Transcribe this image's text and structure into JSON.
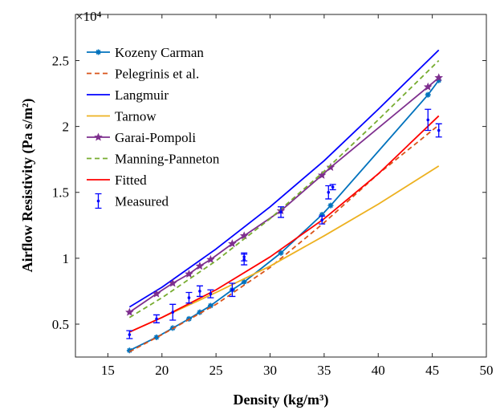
{
  "chart_data": {
    "type": "line",
    "xlabel": "Density (kg/m³)",
    "ylabel": "Airflow Resistivity (Pa s/m²)",
    "y_multiplier_label": "×10⁴",
    "xlim": [
      12,
      50
    ],
    "ylim": [
      0.25,
      2.85
    ],
    "x_ticks": [
      15,
      20,
      25,
      30,
      35,
      40,
      45,
      50
    ],
    "y_ticks": [
      0.5,
      1,
      1.5,
      2,
      2.5
    ],
    "x_tick_labels": [
      "15",
      "20",
      "25",
      "30",
      "35",
      "40",
      "45",
      "50"
    ],
    "y_tick_labels": [
      "0.5",
      "1",
      "1.5",
      "2",
      "2.5"
    ],
    "legend_position": "top-left",
    "grid": false,
    "series": [
      {
        "name": "Kozeny Carman",
        "color": "#0072BD",
        "style": "solid",
        "marker": "asterisk",
        "x": [
          17,
          19.5,
          21,
          22.5,
          23.5,
          24.5,
          26.5,
          27.6,
          31,
          34.8,
          35.6,
          44.6,
          45.6
        ],
        "y": [
          0.3,
          0.4,
          0.47,
          0.54,
          0.59,
          0.64,
          0.76,
          0.82,
          1.04,
          1.33,
          1.4,
          2.24,
          2.35
        ]
      },
      {
        "name": "Pelegrinis et al.",
        "color": "#D95319",
        "style": "dashed",
        "marker": "none",
        "x": [
          17,
          20,
          25,
          30,
          35,
          40,
          45.6
        ],
        "y": [
          0.29,
          0.42,
          0.65,
          0.93,
          1.27,
          1.64,
          2.01
        ]
      },
      {
        "name": "Langmuir",
        "color": "#0000FF",
        "style": "solid",
        "marker": "none",
        "x": [
          17,
          20,
          25,
          30,
          35,
          40,
          45.6
        ],
        "y": [
          0.63,
          0.78,
          1.07,
          1.39,
          1.74,
          2.13,
          2.58
        ]
      },
      {
        "name": "Tarnow",
        "color": "#EDB120",
        "style": "solid",
        "marker": "none",
        "x": [
          17,
          20,
          25,
          30,
          35,
          40,
          45.6
        ],
        "y": [
          0.44,
          0.55,
          0.74,
          0.94,
          1.17,
          1.41,
          1.7
        ]
      },
      {
        "name": "Garai-Pompoli",
        "color": "#7E2F8E",
        "style": "solid",
        "marker": "star",
        "x": [
          17,
          19.5,
          21,
          22.5,
          23.5,
          24.5,
          26.5,
          27.6,
          31,
          34.8,
          35.6,
          44.6,
          45.6
        ],
        "y": [
          0.59,
          0.73,
          0.81,
          0.88,
          0.94,
          0.99,
          1.11,
          1.17,
          1.36,
          1.63,
          1.69,
          2.3,
          2.37
        ]
      },
      {
        "name": "Manning-Panneton",
        "color": "#77AC30",
        "style": "dashed",
        "marker": "none",
        "x": [
          17,
          20,
          25,
          30,
          35,
          40,
          45.6
        ],
        "y": [
          0.55,
          0.7,
          0.98,
          1.3,
          1.66,
          2.05,
          2.5
        ]
      },
      {
        "name": "Fitted",
        "color": "#FF0000",
        "style": "solid",
        "marker": "none",
        "x": [
          17,
          20,
          25,
          30,
          35,
          40,
          45.6
        ],
        "y": [
          0.44,
          0.55,
          0.76,
          1.01,
          1.3,
          1.64,
          2.08
        ]
      },
      {
        "name": "Measured",
        "color": "#0000FF",
        "style": "errorbar",
        "marker": "dot",
        "x": [
          17,
          19.5,
          21,
          22.5,
          23.5,
          24.5,
          26.5,
          27.6,
          27.6,
          31,
          34.8,
          35.4,
          35.8,
          44.6,
          45.6
        ],
        "y": [
          0.42,
          0.54,
          0.59,
          0.7,
          0.75,
          0.73,
          0.76,
          0.99,
          1.01,
          1.35,
          1.29,
          1.5,
          1.54,
          2.05,
          1.97
        ],
        "err": [
          0.03,
          0.03,
          0.06,
          0.04,
          0.04,
          0.03,
          0.05,
          0.04,
          0.03,
          0.04,
          0.03,
          0.05,
          0.02,
          0.08,
          0.05
        ]
      }
    ]
  }
}
